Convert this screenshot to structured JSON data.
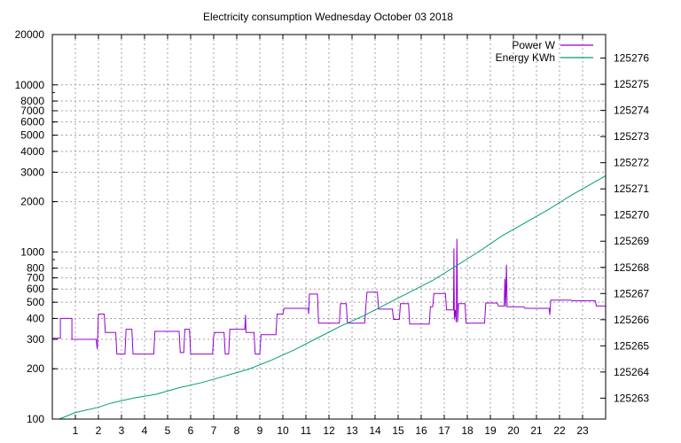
{
  "chart_data": {
    "type": "line",
    "title": "Electricity consumption Wednesday October 03 2018",
    "xlabel": "",
    "ylabel": "",
    "xlim": [
      0,
      24
    ],
    "ylim_left": [
      100,
      20000
    ],
    "y_left_scale": "log",
    "ylim_right": [
      125262.2,
      125276.9
    ],
    "grid": true,
    "legend_position": "top-right",
    "x_ticks": [
      1,
      2,
      3,
      4,
      5,
      6,
      7,
      8,
      9,
      10,
      11,
      12,
      13,
      14,
      15,
      16,
      17,
      18,
      19,
      20,
      21,
      22,
      23
    ],
    "y_left_ticks": [
      {
        "value": 100,
        "label": "100"
      },
      {
        "value": 200,
        "label": "200"
      },
      {
        "value": 300,
        "label": "300"
      },
      {
        "value": 400,
        "label": "400"
      },
      {
        "value": 500,
        "label": "500"
      },
      {
        "value": 600,
        "label": "600"
      },
      {
        "value": 700,
        "label": "700"
      },
      {
        "value": 800,
        "label": "800"
      },
      {
        "value": 1000,
        "label": "1000"
      },
      {
        "value": 2000,
        "label": "2000"
      },
      {
        "value": 3000,
        "label": "3000"
      },
      {
        "value": 4000,
        "label": "4000"
      },
      {
        "value": 5000,
        "label": "5000"
      },
      {
        "value": 6000,
        "label": "6000"
      },
      {
        "value": 7000,
        "label": "7000"
      },
      {
        "value": 8000,
        "label": "8000"
      },
      {
        "value": 10000,
        "label": "10000"
      },
      {
        "value": 20000,
        "label": "20000"
      }
    ],
    "y_right_ticks": [
      125263,
      125264,
      125265,
      125266,
      125267,
      125268,
      125269,
      125270,
      125271,
      125272,
      125273,
      125274,
      125275,
      125276
    ],
    "series": [
      {
        "name": "Power W",
        "axis": "left",
        "color": "#9400d3",
        "points": [
          [
            0,
            305
          ],
          [
            0.35,
            305
          ],
          [
            0.35,
            400
          ],
          [
            0.85,
            400
          ],
          [
            0.85,
            300
          ],
          [
            1.9,
            300
          ],
          [
            1.95,
            262
          ],
          [
            2.0,
            425
          ],
          [
            2.25,
            425
          ],
          [
            2.3,
            330
          ],
          [
            2.75,
            330
          ],
          [
            2.8,
            245
          ],
          [
            3.15,
            245
          ],
          [
            3.2,
            345
          ],
          [
            3.45,
            345
          ],
          [
            3.5,
            245
          ],
          [
            4.4,
            245
          ],
          [
            4.45,
            335
          ],
          [
            5.5,
            335
          ],
          [
            5.55,
            250
          ],
          [
            5.7,
            250
          ],
          [
            5.75,
            345
          ],
          [
            5.95,
            345
          ],
          [
            6.0,
            245
          ],
          [
            6.95,
            245
          ],
          [
            7.0,
            315
          ],
          [
            7.05,
            330
          ],
          [
            7.45,
            330
          ],
          [
            7.5,
            245
          ],
          [
            7.65,
            245
          ],
          [
            7.7,
            345
          ],
          [
            8.35,
            345
          ],
          [
            8.38,
            420
          ],
          [
            8.4,
            330
          ],
          [
            8.75,
            330
          ],
          [
            8.8,
            245
          ],
          [
            9.0,
            245
          ],
          [
            9.05,
            320
          ],
          [
            9.7,
            320
          ],
          [
            9.75,
            425
          ],
          [
            10.0,
            425
          ],
          [
            10.05,
            460
          ],
          [
            11.1,
            460
          ],
          [
            11.12,
            425
          ],
          [
            11.15,
            560
          ],
          [
            11.5,
            560
          ],
          [
            11.55,
            375
          ],
          [
            12.45,
            375
          ],
          [
            12.5,
            490
          ],
          [
            12.75,
            490
          ],
          [
            12.8,
            375
          ],
          [
            13.55,
            375
          ],
          [
            13.6,
            475
          ],
          [
            13.65,
            575
          ],
          [
            14.1,
            575
          ],
          [
            14.15,
            455
          ],
          [
            14.75,
            455
          ],
          [
            14.8,
            395
          ],
          [
            15.05,
            395
          ],
          [
            15.1,
            490
          ],
          [
            15.45,
            490
          ],
          [
            15.5,
            370
          ],
          [
            16.35,
            370
          ],
          [
            16.4,
            470
          ],
          [
            16.5,
            470
          ],
          [
            16.55,
            565
          ],
          [
            17.05,
            565
          ],
          [
            17.1,
            450
          ],
          [
            17.4,
            450
          ],
          [
            17.42,
            1050
          ],
          [
            17.44,
            395
          ],
          [
            17.48,
            450
          ],
          [
            17.52,
            380
          ],
          [
            17.55,
            1200
          ],
          [
            17.58,
            380
          ],
          [
            17.62,
            490
          ],
          [
            17.9,
            490
          ],
          [
            17.95,
            375
          ],
          [
            18.75,
            375
          ],
          [
            18.8,
            495
          ],
          [
            19.3,
            495
          ],
          [
            19.35,
            475
          ],
          [
            19.6,
            475
          ],
          [
            19.63,
            690
          ],
          [
            19.66,
            470
          ],
          [
            19.7,
            840
          ],
          [
            19.73,
            470
          ],
          [
            20.45,
            470
          ],
          [
            20.5,
            460
          ],
          [
            21.55,
            460
          ],
          [
            21.58,
            420
          ],
          [
            21.62,
            515
          ],
          [
            22.5,
            515
          ],
          [
            22.55,
            510
          ],
          [
            23.55,
            510
          ],
          [
            23.6,
            475
          ],
          [
            24.0,
            475
          ]
        ]
      },
      {
        "name": "Energy KWh",
        "axis": "right",
        "color": "#009e73",
        "points": [
          [
            0.3,
            125262.2
          ],
          [
            1.0,
            125262.45
          ],
          [
            2.0,
            125262.65
          ],
          [
            2.5,
            125262.8
          ],
          [
            3.5,
            125263.0
          ],
          [
            4.5,
            125263.15
          ],
          [
            5.5,
            125263.4
          ],
          [
            6.5,
            125263.6
          ],
          [
            7.5,
            125263.85
          ],
          [
            8.5,
            125264.1
          ],
          [
            9.5,
            125264.45
          ],
          [
            10.5,
            125264.85
          ],
          [
            11.5,
            125265.3
          ],
          [
            12.5,
            125265.75
          ],
          [
            13.5,
            125266.15
          ],
          [
            14.5,
            125266.6
          ],
          [
            15.5,
            125267.05
          ],
          [
            16.5,
            125267.5
          ],
          [
            17.5,
            125268.05
          ],
          [
            18.5,
            125268.6
          ],
          [
            19.5,
            125269.2
          ],
          [
            20.5,
            125269.7
          ],
          [
            21.5,
            125270.2
          ],
          [
            22.5,
            125270.75
          ],
          [
            23.5,
            125271.25
          ],
          [
            24.0,
            125271.5
          ]
        ]
      }
    ]
  }
}
